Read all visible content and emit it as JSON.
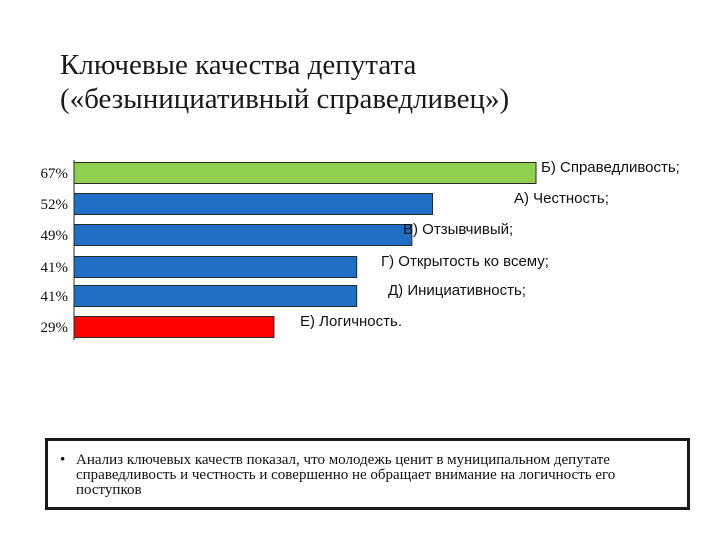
{
  "title": "Ключевые качества депутата\n(«безынициативный справедливец»)",
  "chart_data": {
    "type": "bar",
    "orientation": "horizontal",
    "categories": [
      "Б) Справедливость;",
      "А) Честность;",
      "В) Отзывчивый;",
      "Г) Открытость ко всему;",
      "Д) Инициативность;",
      "Е) Логичность."
    ],
    "values": [
      67,
      52,
      49,
      41,
      41,
      29
    ],
    "value_labels": [
      "67%",
      "52%",
      "49%",
      "41%",
      "41%",
      "29%"
    ],
    "bar_colors": [
      "#8fd14f",
      "#1f6fc6",
      "#1f6fc6",
      "#1f6fc6",
      "#1f6fc6",
      "#ff0000"
    ],
    "xlim": [
      0,
      67
    ],
    "grid": false
  },
  "note": {
    "bullet": "•",
    "text": "Анализ ключевых качеств показал, что молодежь ценит в муниципальном депутате справедливость и честность и совершенно не обращает внимание на логичность его поступков"
  }
}
